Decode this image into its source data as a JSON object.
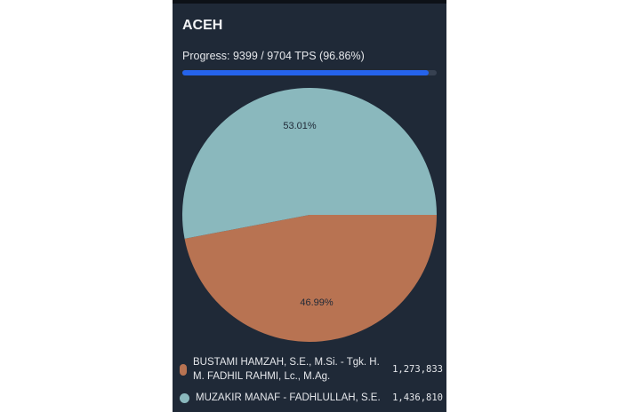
{
  "panel": {
    "title": "ACEH",
    "progress_text": "Progress: 9399 / 9704 TPS (96.86%)",
    "progress_percent": 96.86,
    "progress_color": "#2563eb"
  },
  "legend": [
    {
      "name": "BUSTAMI HAMZAH, S.E., M.Si. - Tgk. H. M. FADHIL RAHMI, Lc., M.Ag.",
      "value": "1,273,833",
      "color": "#b87352"
    },
    {
      "name": "MUZAKIR MANAF - FADHLULLAH, S.E.",
      "value": "1,436,810",
      "color": "#8ab8bd"
    }
  ],
  "chart_data": {
    "type": "pie",
    "title": "ACEH",
    "categories": [
      "BUSTAMI HAMZAH, S.E., M.Si. - Tgk. H. M. FADHIL RAHMI, Lc., M.Ag.",
      "MUZAKIR MANAF - FADHLULLAH, S.E."
    ],
    "values": [
      1273833,
      1436810
    ],
    "percent_labels": [
      "46.99%",
      "53.01%"
    ],
    "colors": [
      "#b87352",
      "#8ab8bd"
    ]
  },
  "labels": {
    "slice_1": "46.99%",
    "slice_2": "53.01%"
  }
}
